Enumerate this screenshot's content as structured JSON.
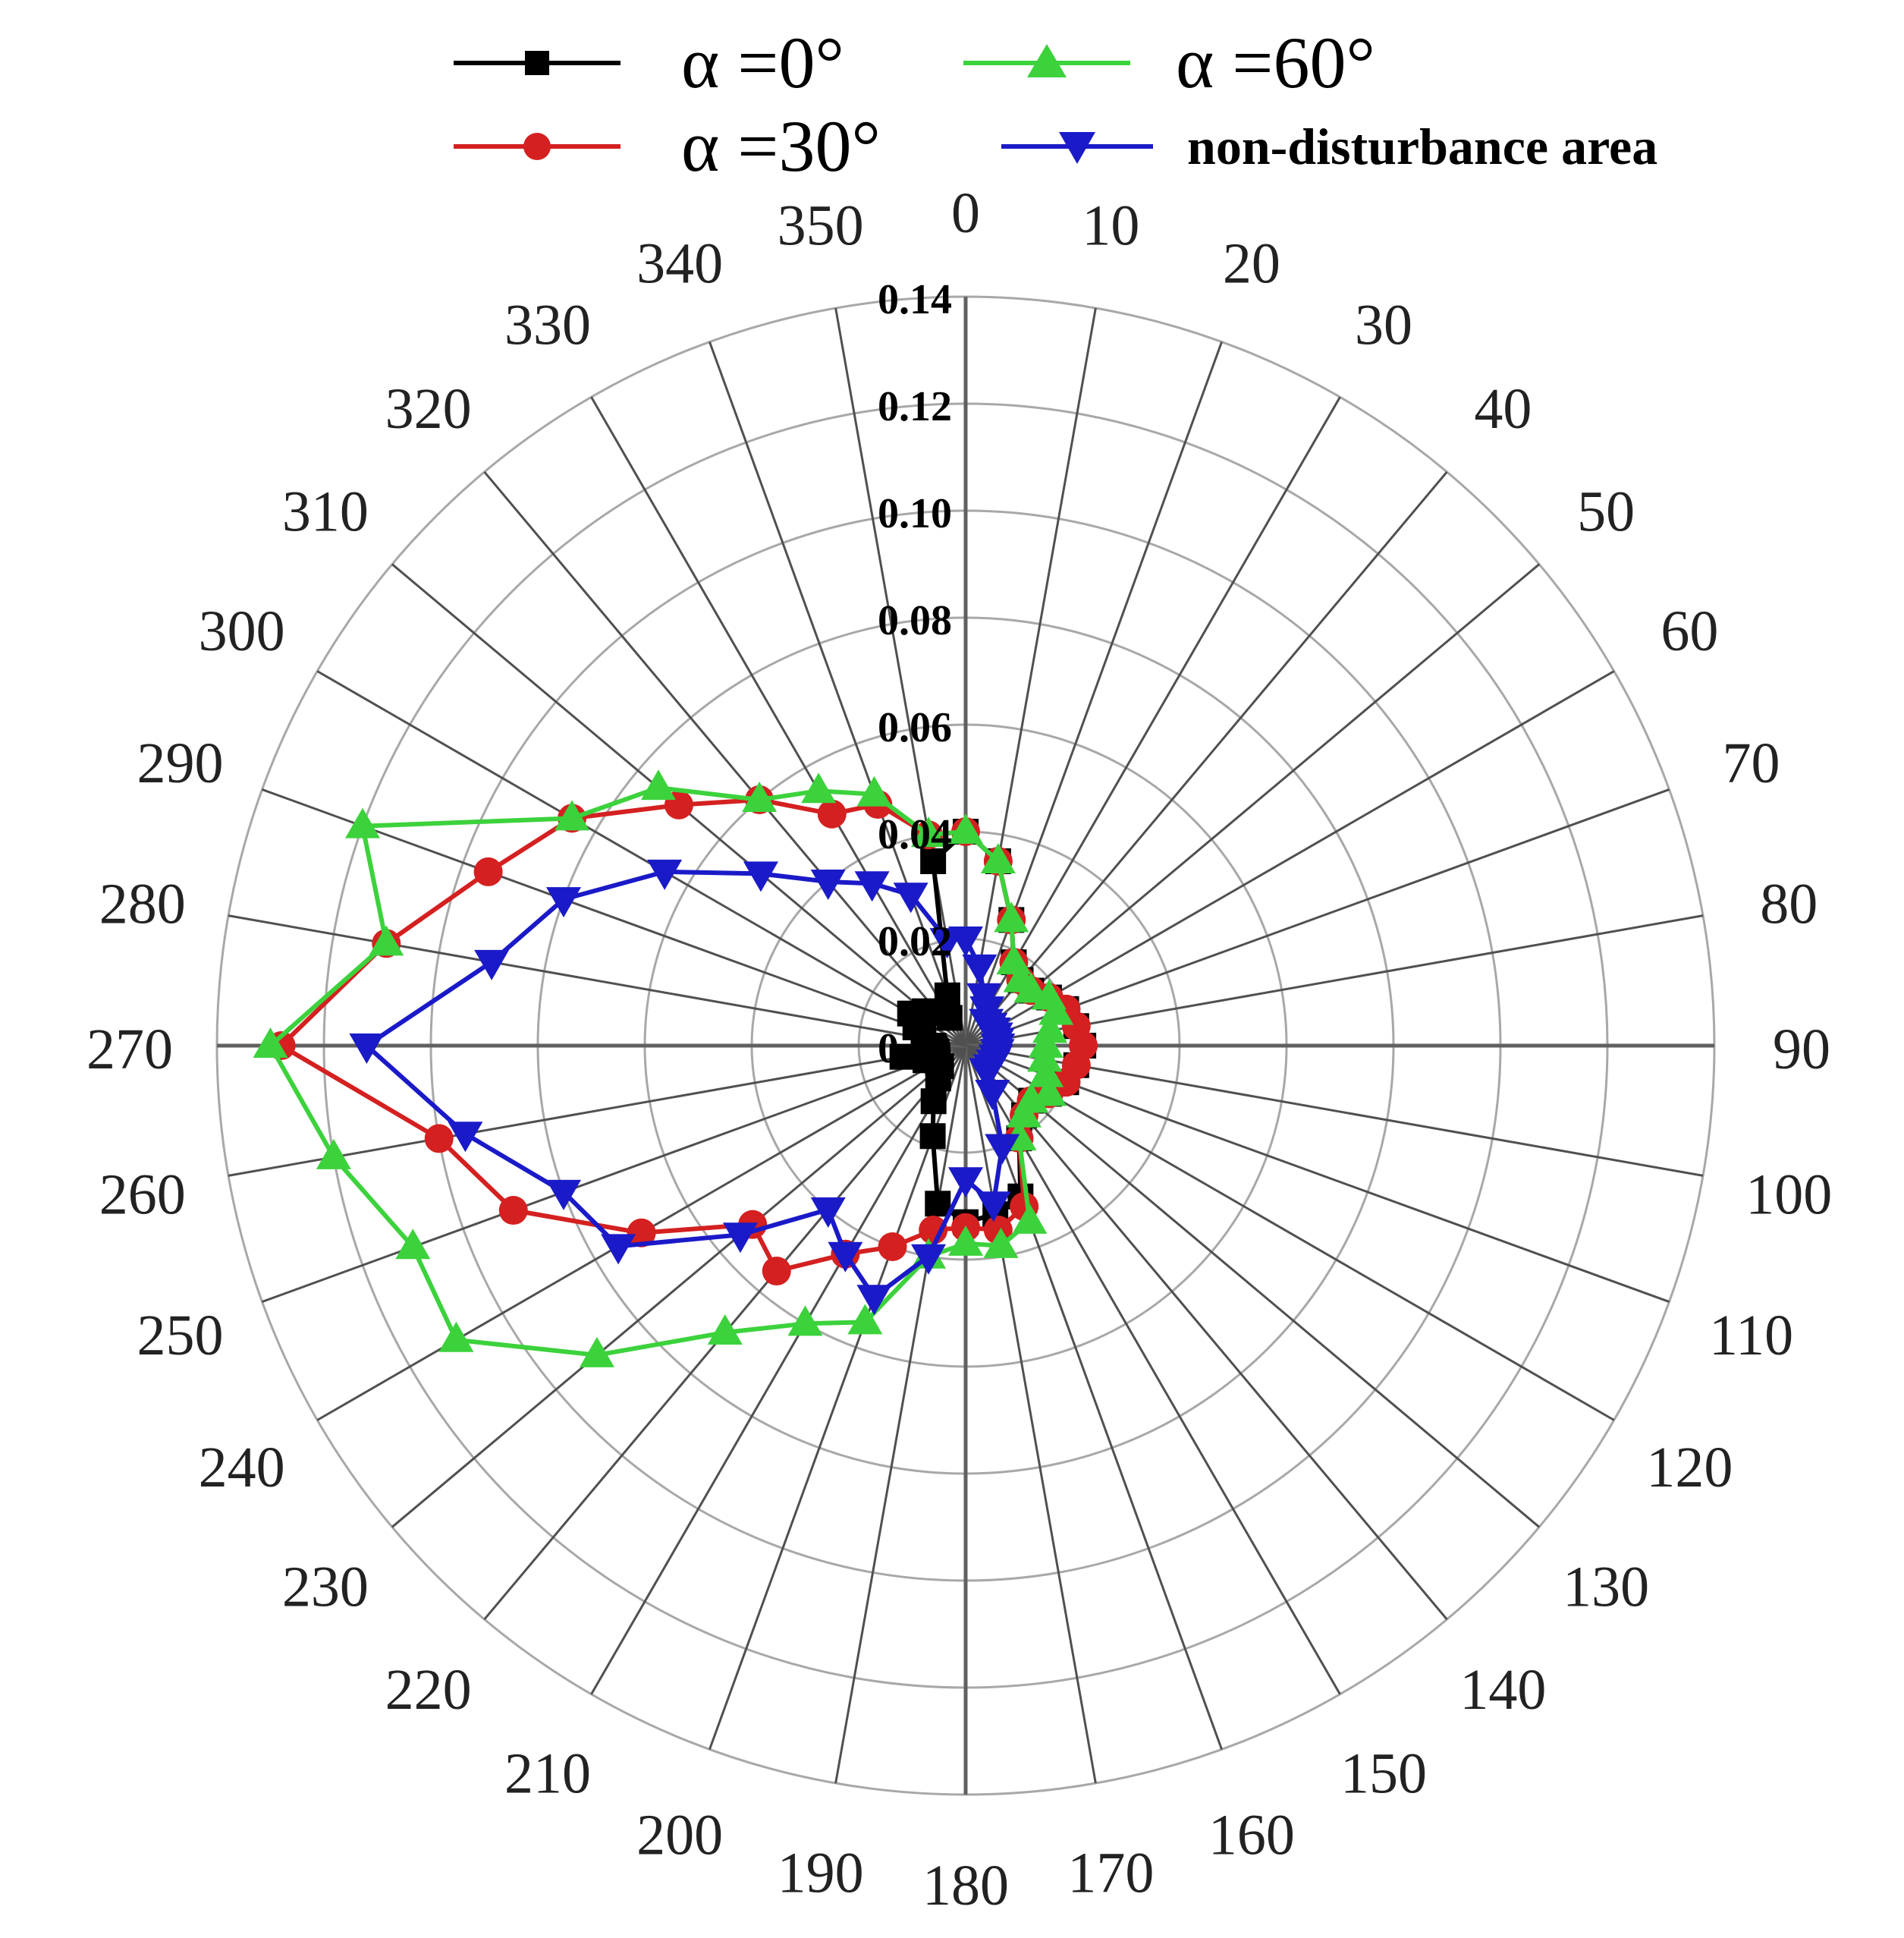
{
  "chart_data": {
    "type": "polar-line",
    "title": "",
    "angular_unit": "degrees",
    "angular_direction": "clockwise",
    "zero_direction": "top",
    "angle_tick_labels": [
      "0",
      "10",
      "20",
      "30",
      "40",
      "50",
      "60",
      "70",
      "80",
      "90",
      "100",
      "110",
      "120",
      "130",
      "140",
      "150",
      "160",
      "170",
      "180",
      "190",
      "200",
      "210",
      "220",
      "230",
      "240",
      "250",
      "260",
      "270",
      "280",
      "290",
      "300",
      "310",
      "320",
      "330",
      "340",
      "350"
    ],
    "radial_range": [
      0,
      0.14
    ],
    "radial_tick_labels": [
      "0.00",
      "0.02",
      "0.04",
      "0.06",
      "0.08",
      "0.10",
      "0.12",
      "0.14"
    ],
    "legend_position": "top",
    "series": [
      {
        "name": "α =0°",
        "color": "#000000",
        "marker": "square",
        "angles": [
          0,
          10,
          20,
          30,
          40,
          50,
          60,
          70,
          80,
          90,
          100,
          110,
          120,
          130,
          140,
          150,
          160,
          170,
          180,
          190,
          200,
          210,
          220,
          230,
          240,
          250,
          260,
          270,
          280,
          290,
          300,
          310,
          320,
          330,
          340,
          350
        ],
        "values": [
          0.04,
          0.035,
          0.025,
          0.018,
          0.016,
          0.016,
          0.018,
          0.02,
          0.021,
          0.022,
          0.021,
          0.02,
          0.018,
          0.016,
          0.017,
          0.02,
          0.03,
          0.032,
          0.033,
          0.03,
          0.018,
          0.012,
          0.008,
          0.006,
          0.006,
          0.008,
          0.012,
          0.006,
          0.008,
          0.01,
          0.012,
          0.01,
          0.008,
          0.006,
          0.01,
          0.035
        ]
      },
      {
        "name": "α =30°",
        "color": "#d42020",
        "marker": "circle",
        "angles": [
          0,
          10,
          20,
          30,
          40,
          50,
          60,
          70,
          80,
          90,
          100,
          110,
          120,
          130,
          140,
          150,
          160,
          170,
          180,
          190,
          200,
          210,
          220,
          230,
          240,
          250,
          260,
          270,
          280,
          290,
          300,
          310,
          320,
          330,
          340,
          350
        ],
        "values": [
          0.04,
          0.035,
          0.025,
          0.018,
          0.016,
          0.016,
          0.018,
          0.02,
          0.021,
          0.022,
          0.021,
          0.02,
          0.018,
          0.016,
          0.017,
          0.02,
          0.032,
          0.035,
          0.034,
          0.035,
          0.04,
          0.045,
          0.055,
          0.052,
          0.07,
          0.09,
          0.1,
          0.128,
          0.11,
          0.095,
          0.085,
          0.07,
          0.06,
          0.05,
          0.048,
          0.04
        ]
      },
      {
        "name": "α =60°",
        "color": "#3cd23c",
        "marker": "triangle-up",
        "angles": [
          0,
          10,
          20,
          30,
          40,
          50,
          60,
          70,
          80,
          90,
          100,
          110,
          120,
          130,
          140,
          150,
          160,
          170,
          180,
          190,
          200,
          210,
          220,
          230,
          240,
          250,
          260,
          270,
          280,
          290,
          300,
          310,
          320,
          330,
          340,
          350
        ],
        "values": [
          0.04,
          0.035,
          0.025,
          0.018,
          0.016,
          0.016,
          0.018,
          0.018,
          0.016,
          0.015,
          0.015,
          0.016,
          0.018,
          0.016,
          0.017,
          0.02,
          0.035,
          0.038,
          0.037,
          0.04,
          0.055,
          0.06,
          0.07,
          0.09,
          0.11,
          0.11,
          0.12,
          0.13,
          0.11,
          0.12,
          0.085,
          0.075,
          0.06,
          0.055,
          0.05,
          0.04
        ]
      },
      {
        "name": "non-disturbance area",
        "color": "#1a1ac8",
        "marker": "triangle-down",
        "angles": [
          0,
          10,
          20,
          30,
          40,
          50,
          60,
          70,
          80,
          90,
          100,
          110,
          120,
          130,
          140,
          150,
          160,
          170,
          180,
          190,
          200,
          210,
          220,
          230,
          240,
          250,
          260,
          270,
          280,
          290,
          300,
          310,
          320,
          330,
          340,
          350
        ],
        "values": [
          0.02,
          0.015,
          0.01,
          0.008,
          0.006,
          0.006,
          0.006,
          0.006,
          0.006,
          0.006,
          0.006,
          0.006,
          0.006,
          0.006,
          0.006,
          0.01,
          0.02,
          0.03,
          0.025,
          0.04,
          0.05,
          0.045,
          0.04,
          0.055,
          0.075,
          0.08,
          0.095,
          0.112,
          0.09,
          0.08,
          0.065,
          0.05,
          0.04,
          0.035,
          0.03,
          0.02
        ]
      }
    ]
  }
}
